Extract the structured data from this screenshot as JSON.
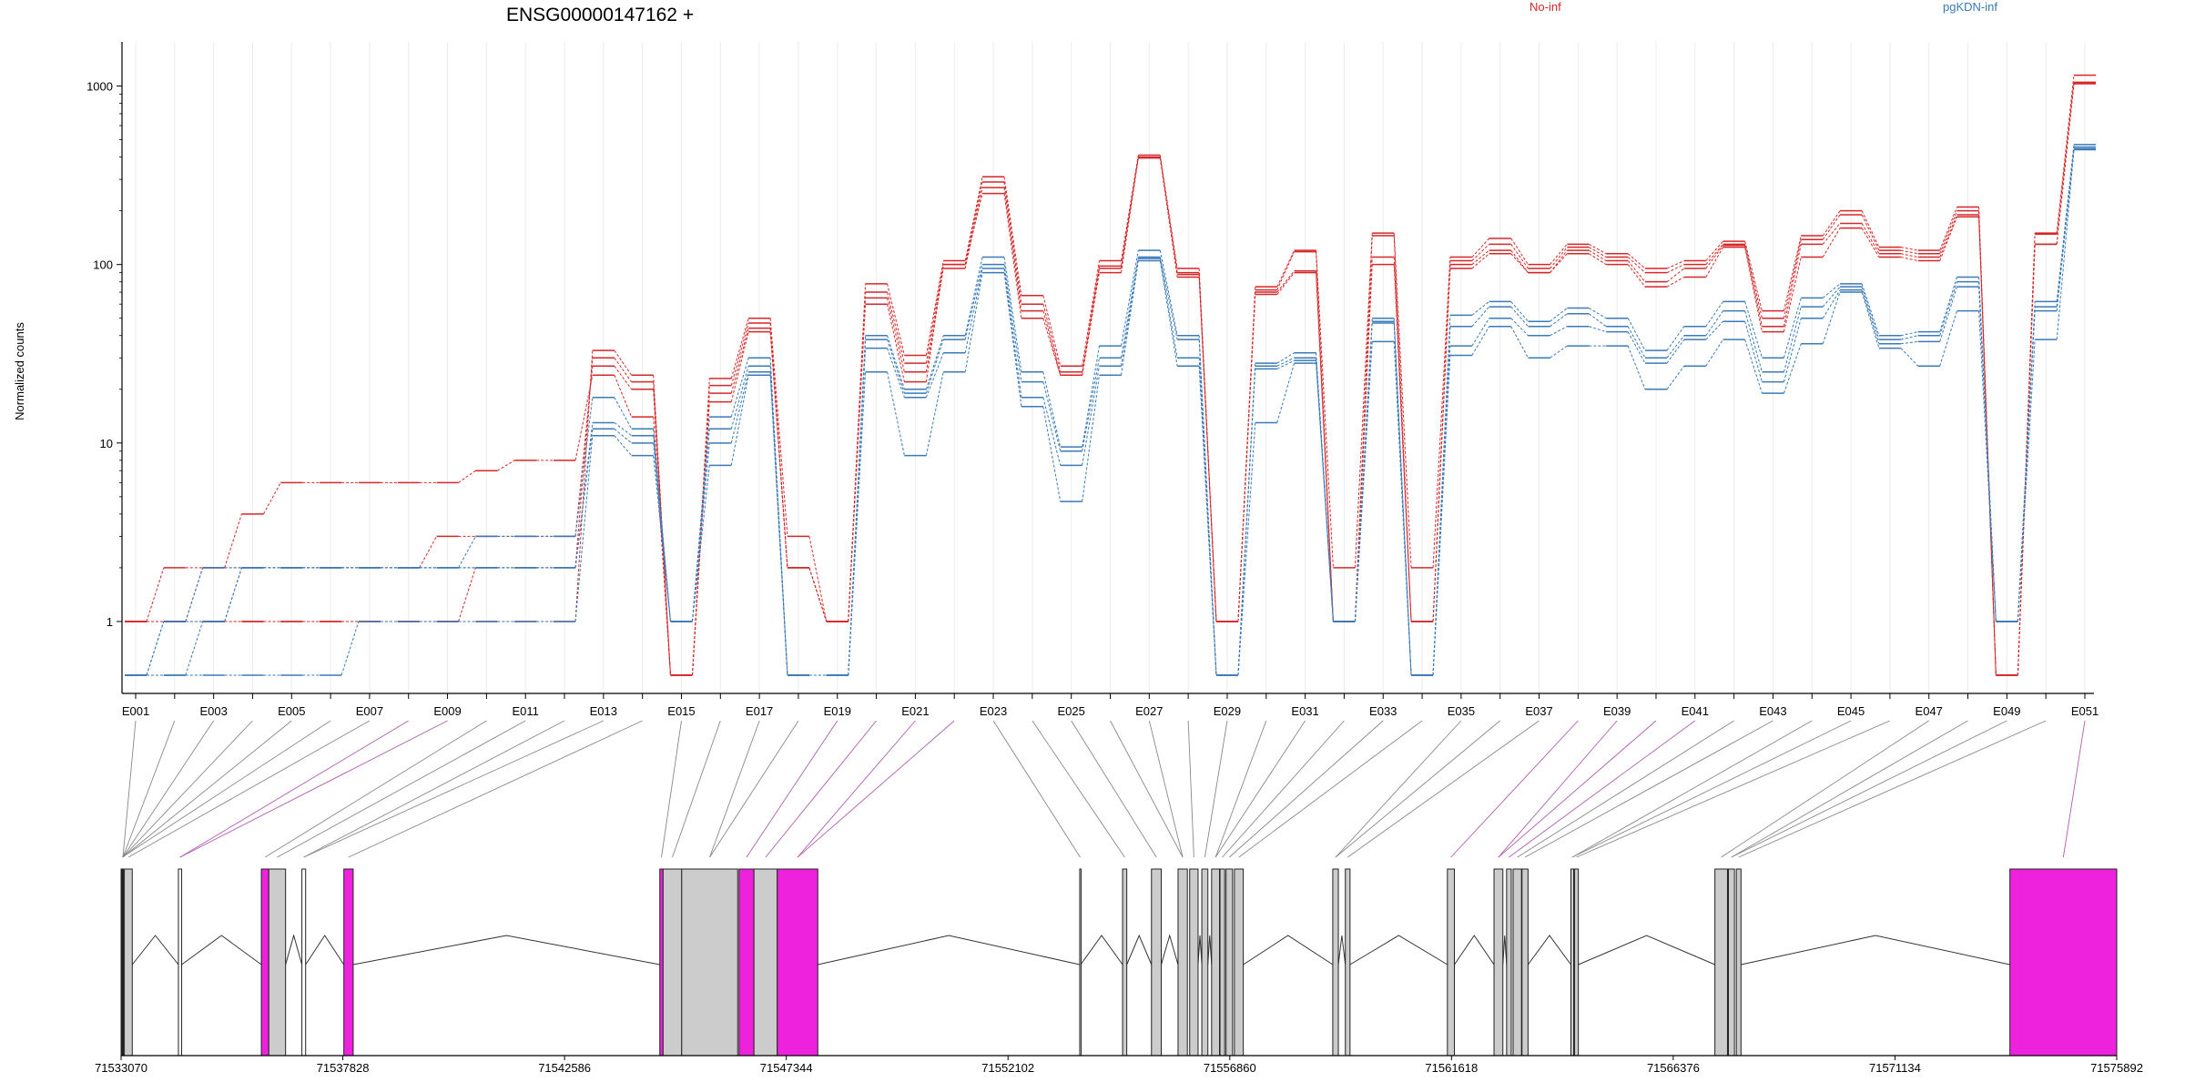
{
  "chart_data": {
    "type": "line",
    "title": "ENSG00000147162 +",
    "ylabel": "Normalized counts",
    "yscale": "log",
    "ylim": [
      0.5,
      1500
    ],
    "yticks": [
      "1",
      "10",
      "100",
      "1000"
    ],
    "ytick_values": [
      1,
      10,
      100,
      1000
    ],
    "grid": "vertical",
    "legend": [
      {
        "name": "No-inf",
        "color": "#d62728"
      },
      {
        "name": "pgKDN-inf",
        "color": "#3a7ab8"
      }
    ],
    "exons": [
      "E001",
      "E002",
      "E003",
      "E004",
      "E005",
      "E006",
      "E007",
      "E008",
      "E009",
      "E010",
      "E011",
      "E012",
      "E013",
      "E014",
      "E015",
      "E016",
      "E017",
      "E018",
      "E019",
      "E020",
      "E021",
      "E022",
      "E023",
      "E024",
      "E025",
      "E026",
      "E027",
      "E028",
      "E029",
      "E030",
      "E031",
      "E032",
      "E033",
      "E034",
      "E035",
      "E036",
      "E037",
      "E038",
      "E039",
      "E040",
      "E041",
      "E042",
      "E043",
      "E044",
      "E045",
      "E046",
      "E047",
      "E048",
      "E049",
      "E050",
      "E051"
    ],
    "exon_labels_shown": [
      "E001",
      "E003",
      "E005",
      "E007",
      "E009",
      "E011",
      "E013",
      "E015",
      "E017",
      "E019",
      "E021",
      "E023",
      "E025",
      "E027",
      "E029",
      "E031",
      "E033",
      "E035",
      "E037",
      "E039",
      "E041",
      "E043",
      "E045",
      "E047",
      "E049",
      "E051"
    ],
    "series": [
      {
        "name": "No-inf",
        "color": "#d62728",
        "values": [
          1,
          1,
          1,
          1,
          1,
          1,
          1,
          1,
          1,
          1,
          1,
          1,
          33,
          24,
          0.5,
          23,
          50,
          3,
          1,
          78,
          31,
          105,
          310,
          67,
          27,
          105,
          410,
          95,
          1,
          75,
          120,
          2,
          150,
          2,
          110,
          140,
          100,
          130,
          115,
          95,
          105,
          135,
          55,
          145,
          200,
          125,
          120,
          210,
          0.5,
          150,
          1150
        ]
      },
      {
        "name": "No-inf",
        "color": "#d62728",
        "values": [
          1,
          1,
          1,
          1,
          1,
          1,
          1,
          1,
          1,
          2,
          2,
          2,
          30,
          22,
          0.5,
          21,
          47,
          2,
          1,
          70,
          28,
          100,
          290,
          60,
          25,
          98,
          400,
          90,
          1,
          72,
          118,
          1,
          145,
          1,
          105,
          130,
          95,
          125,
          110,
          90,
          100,
          130,
          50,
          138,
          190,
          120,
          115,
          200,
          0.5,
          148,
          1050
        ]
      },
      {
        "name": "No-inf",
        "color": "#d62728",
        "values": [
          1,
          2,
          2,
          2,
          2,
          2,
          2,
          2,
          3,
          3,
          3,
          3,
          27,
          20,
          0.5,
          19,
          44,
          2,
          1,
          65,
          25,
          95,
          270,
          55,
          24,
          95,
          398,
          88,
          1,
          70,
          92,
          1,
          110,
          1,
          100,
          120,
          90,
          120,
          105,
          80,
          95,
          128,
          45,
          130,
          170,
          115,
          110,
          190,
          0.5,
          130,
          1040
        ]
      },
      {
        "name": "No-inf",
        "color": "#d62728",
        "values": [
          1,
          1,
          2,
          4,
          6,
          6,
          6,
          6,
          6,
          7,
          8,
          8,
          24,
          14,
          0.5,
          17,
          42,
          2,
          1,
          60,
          22,
          100,
          250,
          50,
          24,
          90,
          395,
          85,
          1,
          68,
          90,
          1,
          100,
          1,
          95,
          115,
          90,
          115,
          100,
          75,
          85,
          125,
          42,
          110,
          160,
          110,
          105,
          185,
          0.5,
          130,
          1030
        ]
      },
      {
        "name": "pgKDN-inf",
        "color": "#3a7ab8",
        "values": [
          0.5,
          1,
          2,
          2,
          2,
          2,
          2,
          2,
          2,
          3,
          3,
          3,
          18,
          12,
          1,
          14,
          30,
          0.5,
          0.5,
          40,
          20,
          40,
          110,
          25,
          9.5,
          35,
          120,
          40,
          0.5,
          28,
          32,
          1,
          50,
          0.5,
          52,
          62,
          48,
          57,
          50,
          33,
          45,
          62,
          30,
          65,
          78,
          40,
          42,
          85,
          1,
          62,
          470
        ]
      },
      {
        "name": "pgKDN-inf",
        "color": "#3a7ab8",
        "values": [
          0.5,
          1,
          1,
          2,
          2,
          2,
          2,
          2,
          2,
          2,
          2,
          2,
          13,
          11,
          1,
          12,
          27,
          0.5,
          0.5,
          38,
          19,
          38,
          100,
          22,
          9,
          30,
          110,
          38,
          0.5,
          27,
          30,
          1,
          48,
          0.5,
          45,
          58,
          45,
          53,
          45,
          30,
          40,
          55,
          25,
          58,
          75,
          38,
          40,
          80,
          1,
          58,
          455
        ]
      },
      {
        "name": "pgKDN-inf",
        "color": "#3a7ab8",
        "values": [
          0.5,
          0.5,
          1,
          2,
          2,
          2,
          2,
          2,
          2,
          2,
          2,
          2,
          12,
          10,
          1,
          10,
          25,
          0.5,
          0.5,
          34,
          18,
          32,
          95,
          18,
          7.5,
          27,
          108,
          30,
          0.5,
          26,
          29,
          1,
          47,
          0.5,
          35,
          50,
          40,
          45,
          42,
          28,
          38,
          48,
          22,
          50,
          72,
          36,
          37,
          75,
          1,
          55,
          445
        ]
      },
      {
        "name": "pgKDN-inf",
        "color": "#3a7ab8",
        "values": [
          0.5,
          0.5,
          0.5,
          0.5,
          0.5,
          0.5,
          1,
          1,
          1,
          1,
          1,
          1,
          11,
          8.5,
          1,
          7.5,
          24,
          0.5,
          0.5,
          25,
          8.5,
          25,
          90,
          16,
          4.7,
          24,
          105,
          27,
          0.5,
          13,
          28,
          1,
          37,
          0.5,
          31,
          45,
          30,
          35,
          35,
          20,
          27,
          38,
          19,
          36,
          70,
          34,
          27,
          55,
          1,
          38,
          440
        ]
      }
    ],
    "gene_model": {
      "xlim": [
        71533070,
        71575892
      ],
      "xticks": [
        "71533070",
        "71537828",
        "71542586",
        "71547344",
        "71552102",
        "71556860",
        "71561618",
        "71566376",
        "71571134",
        "71575892"
      ],
      "xtick_values": [
        71533070,
        71537828,
        71542586,
        71547344,
        71552102,
        71556860,
        71561618,
        71566376,
        71571134,
        71575892
      ],
      "blocks": [
        {
          "start": 71533070,
          "end": 71533120,
          "color": "#222222"
        },
        {
          "start": 71533140,
          "end": 71533310,
          "color": "#cccccc"
        },
        {
          "start": 71534300,
          "end": 71534370,
          "color": "#ffffff"
        },
        {
          "start": 71536080,
          "end": 71536240,
          "color": "#ee22dd"
        },
        {
          "start": 71536240,
          "end": 71536600,
          "color": "#cccccc"
        },
        {
          "start": 71536950,
          "end": 71537030,
          "color": "#ffffff"
        },
        {
          "start": 71537850,
          "end": 71538050,
          "color": "#ee22dd"
        },
        {
          "start": 71544630,
          "end": 71544700,
          "color": "#ee22dd"
        },
        {
          "start": 71544700,
          "end": 71545100,
          "color": "#cccccc"
        },
        {
          "start": 71545100,
          "end": 71546300,
          "color": "#cccccc"
        },
        {
          "start": 71546330,
          "end": 71546650,
          "color": "#ee22dd"
        },
        {
          "start": 71546650,
          "end": 71547150,
          "color": "#cccccc"
        },
        {
          "start": 71547150,
          "end": 71548020,
          "color": "#ee22dd"
        },
        {
          "start": 71553640,
          "end": 71553660,
          "color": "#ffffff"
        },
        {
          "start": 71554560,
          "end": 71554650,
          "color": "#cccccc"
        },
        {
          "start": 71555180,
          "end": 71555390,
          "color": "#cccccc"
        },
        {
          "start": 71555750,
          "end": 71555950,
          "color": "#cccccc"
        },
        {
          "start": 71556000,
          "end": 71556180,
          "color": "#cccccc"
        },
        {
          "start": 71556260,
          "end": 71556390,
          "color": "#cccccc"
        },
        {
          "start": 71556470,
          "end": 71556640,
          "color": "#cccccc"
        },
        {
          "start": 71556650,
          "end": 71556750,
          "color": "#cccccc"
        },
        {
          "start": 71556780,
          "end": 71556920,
          "color": "#cccccc"
        },
        {
          "start": 71556960,
          "end": 71557150,
          "color": "#cccccc"
        },
        {
          "start": 71559070,
          "end": 71559190,
          "color": "#cccccc"
        },
        {
          "start": 71559340,
          "end": 71559440,
          "color": "#cccccc"
        },
        {
          "start": 71561530,
          "end": 71561680,
          "color": "#cccccc"
        },
        {
          "start": 71562530,
          "end": 71562720,
          "color": "#cccccc"
        },
        {
          "start": 71562800,
          "end": 71562900,
          "color": "#cccccc"
        },
        {
          "start": 71562940,
          "end": 71563120,
          "color": "#cccccc"
        },
        {
          "start": 71563130,
          "end": 71563260,
          "color": "#cccccc"
        },
        {
          "start": 71564180,
          "end": 71564240,
          "color": "#cccccc"
        },
        {
          "start": 71564260,
          "end": 71564340,
          "color": "#cccccc"
        },
        {
          "start": 71567270,
          "end": 71567540,
          "color": "#cccccc"
        },
        {
          "start": 71567560,
          "end": 71567690,
          "color": "#cccccc"
        },
        {
          "start": 71567730,
          "end": 71567830,
          "color": "#cccccc"
        },
        {
          "start": 71573600,
          "end": 71575892,
          "color": "#ee22dd"
        }
      ]
    }
  }
}
